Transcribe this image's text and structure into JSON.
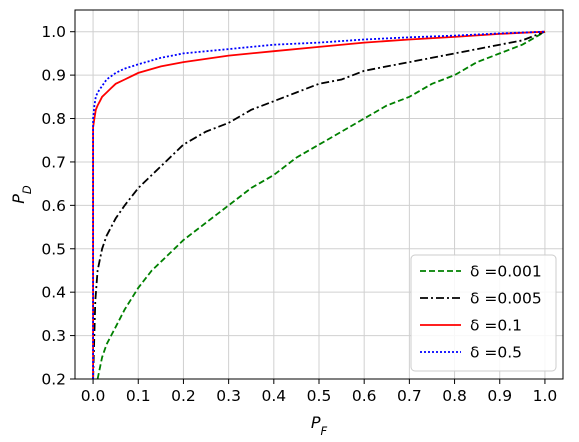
{
  "chart_data": {
    "type": "line",
    "xlabel": "P_F",
    "ylabel": "P_D",
    "xlim": [
      -0.04,
      1.04
    ],
    "ylim": [
      0.2,
      1.05
    ],
    "xticks": [
      0.0,
      0.1,
      0.2,
      0.3,
      0.4,
      0.5,
      0.6,
      0.7,
      0.8,
      0.9,
      1.0
    ],
    "yticks": [
      0.2,
      0.3,
      0.4,
      0.5,
      0.6,
      0.7,
      0.8,
      0.9,
      1.0
    ],
    "xtick_labels": [
      "0.0",
      "0.1",
      "0.2",
      "0.3",
      "0.4",
      "0.5",
      "0.6",
      "0.7",
      "0.8",
      "0.9",
      "1.0"
    ],
    "ytick_labels": [
      "0.2",
      "0.3",
      "0.4",
      "0.5",
      "0.6",
      "0.7",
      "0.8",
      "0.9",
      "1.0"
    ],
    "grid": true,
    "legend_position": "lower-right",
    "series": [
      {
        "name": "δ =0.001",
        "color": "#008000",
        "style": "dashed",
        "x": [
          0.01,
          0.02,
          0.03,
          0.05,
          0.07,
          0.1,
          0.13,
          0.15,
          0.18,
          0.2,
          0.25,
          0.3,
          0.35,
          0.4,
          0.45,
          0.5,
          0.55,
          0.6,
          0.65,
          0.7,
          0.75,
          0.8,
          0.85,
          0.9,
          0.95,
          1.0
        ],
        "y": [
          0.2,
          0.25,
          0.28,
          0.32,
          0.36,
          0.41,
          0.45,
          0.47,
          0.5,
          0.52,
          0.56,
          0.6,
          0.64,
          0.67,
          0.71,
          0.74,
          0.77,
          0.8,
          0.83,
          0.85,
          0.88,
          0.9,
          0.93,
          0.95,
          0.97,
          1.0
        ]
      },
      {
        "name": "δ =0.005",
        "color": "#000000",
        "style": "dashdot",
        "x": [
          0.0,
          0.005,
          0.01,
          0.02,
          0.03,
          0.05,
          0.07,
          0.1,
          0.13,
          0.15,
          0.2,
          0.25,
          0.3,
          0.35,
          0.4,
          0.45,
          0.5,
          0.55,
          0.6,
          0.65,
          0.7,
          0.75,
          0.8,
          0.85,
          0.9,
          0.95,
          1.0
        ],
        "y": [
          0.2,
          0.38,
          0.45,
          0.5,
          0.53,
          0.57,
          0.6,
          0.64,
          0.67,
          0.69,
          0.74,
          0.77,
          0.79,
          0.82,
          0.84,
          0.86,
          0.88,
          0.89,
          0.91,
          0.92,
          0.93,
          0.94,
          0.95,
          0.96,
          0.97,
          0.98,
          1.0
        ]
      },
      {
        "name": "δ =0.1",
        "color": "#ff0000",
        "style": "solid",
        "x": [
          0.0,
          0.0,
          0.003,
          0.006,
          0.01,
          0.015,
          0.02,
          0.03,
          0.04,
          0.05,
          0.07,
          0.1,
          0.15,
          0.2,
          0.3,
          0.4,
          0.5,
          0.6,
          0.7,
          0.8,
          0.9,
          1.0
        ],
        "y": [
          0.2,
          0.78,
          0.8,
          0.82,
          0.83,
          0.84,
          0.85,
          0.86,
          0.87,
          0.88,
          0.89,
          0.905,
          0.92,
          0.93,
          0.945,
          0.955,
          0.965,
          0.975,
          0.982,
          0.988,
          0.995,
          1.0
        ]
      },
      {
        "name": "δ =0.5",
        "color": "#0000ff",
        "style": "dotted",
        "x": [
          0.0,
          0.0,
          0.003,
          0.006,
          0.01,
          0.02,
          0.03,
          0.05,
          0.07,
          0.1,
          0.15,
          0.2,
          0.3,
          0.4,
          0.5,
          0.6,
          0.7,
          0.8,
          0.9,
          1.0
        ],
        "y": [
          0.2,
          0.8,
          0.83,
          0.85,
          0.86,
          0.875,
          0.89,
          0.905,
          0.915,
          0.925,
          0.94,
          0.95,
          0.96,
          0.97,
          0.975,
          0.982,
          0.987,
          0.991,
          0.996,
          1.0
        ]
      }
    ]
  }
}
